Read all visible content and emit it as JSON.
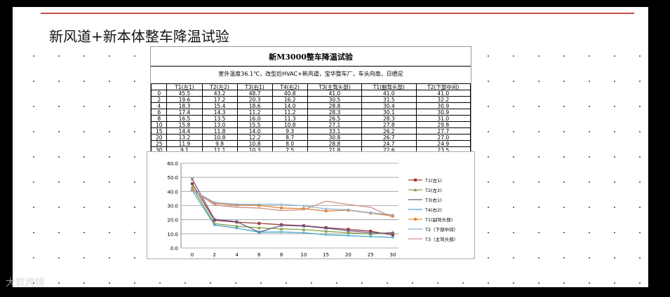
{
  "slide": {
    "title": "新风道+新本体整车降温试验"
  },
  "table": {
    "title": "新M3000整车降温试验",
    "subtitle": "室外温度36.1℃，改型后HVAC+新风道，宝华整车厂，车头向南，日晒足",
    "headers": [
      "",
      "T1(左1)",
      "T2(左2)",
      "T3(右1)",
      "T4(右2)",
      "T3(主驾头部)",
      "T1(副驾头部)",
      "T2(下部中间)"
    ],
    "rows": [
      [
        "0",
        "45.5",
        "43.2",
        "48.7",
        "40.8",
        "41.0",
        "41.0",
        "41.0"
      ],
      [
        "2",
        "19.6",
        "17.2",
        "20.3",
        "16.2",
        "30.5",
        "31.5",
        "32.2"
      ],
      [
        "4",
        "18.3",
        "15.4",
        "18.6",
        "14.0",
        "28.8",
        "30.4",
        "30.9"
      ],
      [
        "6",
        "17.4",
        "14.3",
        "11.2",
        "11.2",
        "28.3",
        "30.1",
        "30.9"
      ],
      [
        "8",
        "16.5",
        "13.5",
        "16.0",
        "11.3",
        "26.5",
        "28.3",
        "31.0"
      ],
      [
        "10",
        "15.8",
        "13.0",
        "15.5",
        "10.8",
        "27.1",
        "27.8",
        "29.8"
      ],
      [
        "15",
        "14.4",
        "11.8",
        "14.0",
        "9.3",
        "33.1",
        "26.2",
        "27.7"
      ],
      [
        "20",
        "13.2",
        "10.8",
        "12.2",
        "8.7",
        "30.8",
        "26.7",
        "27.0"
      ],
      [
        "25",
        "11.9",
        "9.8",
        "10.8",
        "8.0",
        "28.8",
        "24.7",
        "24.9"
      ],
      [
        "30",
        "9.1",
        "11.1",
        "10.3",
        "7.5",
        "21.8",
        "22.6",
        "23.5"
      ]
    ]
  },
  "chart_data": {
    "type": "line",
    "x": [
      "0",
      "2",
      "4",
      "6",
      "8",
      "10",
      "15",
      "20",
      "25",
      "30"
    ],
    "ylim": [
      0,
      60
    ],
    "yticks": [
      "0.0",
      "10.0",
      "20.0",
      "30.0",
      "40.0",
      "50.0",
      "60.0"
    ],
    "grid": true,
    "legend_position": "right",
    "series": [
      {
        "name": "T1(左1)",
        "color": "#9b3a3a",
        "marker": "square",
        "values": [
          45.5,
          19.6,
          18.3,
          17.4,
          16.5,
          15.8,
          14.4,
          13.2,
          11.9,
          9.1
        ]
      },
      {
        "name": "T2(左2)",
        "color": "#8aa04a",
        "marker": "triangle",
        "values": [
          43.2,
          17.2,
          15.4,
          14.3,
          13.5,
          13.0,
          11.8,
          10.8,
          9.8,
          11.1
        ]
      },
      {
        "name": "T3(右1)",
        "color": "#6b5b8c",
        "marker": "x",
        "values": [
          48.7,
          20.3,
          18.6,
          11.2,
          16.0,
          15.5,
          14.0,
          12.2,
          10.8,
          10.3
        ]
      },
      {
        "name": "T4(右2)",
        "color": "#3fa6c8",
        "marker": "star",
        "values": [
          40.8,
          16.2,
          14.0,
          11.2,
          11.3,
          10.8,
          9.3,
          8.7,
          8.0,
          7.5
        ]
      },
      {
        "name": "T1(副驾头部)",
        "color": "#e08a3c",
        "marker": "circle",
        "values": [
          41.0,
          31.5,
          30.4,
          30.1,
          28.3,
          27.8,
          26.2,
          26.7,
          24.7,
          22.6
        ]
      },
      {
        "name": "T2（下部中间）",
        "color": "#8ab0d8",
        "marker": "plus",
        "values": [
          41.0,
          32.2,
          30.9,
          30.9,
          31.0,
          29.8,
          27.7,
          27.0,
          24.9,
          23.5
        ]
      },
      {
        "name": "T3（主驾头部）",
        "color": "#d09080",
        "marker": "none",
        "values": [
          41.0,
          30.5,
          28.8,
          28.3,
          26.5,
          27.1,
          33.1,
          30.8,
          28.8,
          21.8
        ]
      }
    ]
  },
  "watermark": "大数跨境"
}
